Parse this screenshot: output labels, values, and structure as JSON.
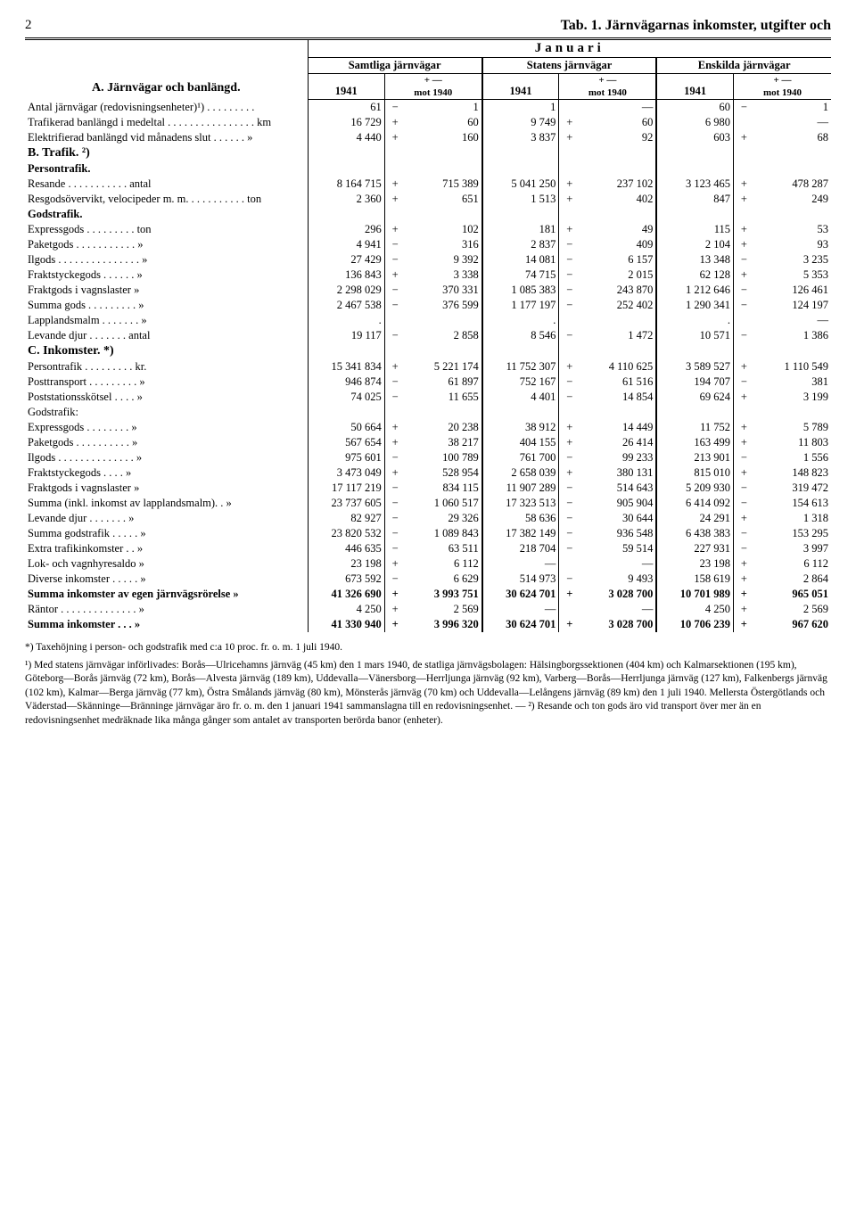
{
  "page_number": "2",
  "page_title": "Tab. 1.  Järnvägarnas inkomster, utgifter och",
  "month": "Januari",
  "col_groups": [
    "Samtliga järnvägar",
    "Statens järnvägar",
    "Enskilda järnvägar"
  ],
  "year": "1941",
  "diff_label_top": "+  —",
  "diff_label_bot": "mot 1940",
  "sectionA_title": "A. Järnvägar och banlängd.",
  "sectionB_title": "B. Trafik. ²)",
  "persontrafik_title": "Persontrafik.",
  "godstrafik_title": "Godstrafik.",
  "sectionC_title": "C. Inkomster. *)",
  "rowsA": [
    {
      "label": "Antal järnvägar (redovisningsenheter)¹) . . . . . . . . .",
      "v": [
        "61",
        "−",
        "1",
        "1",
        "",
        "—",
        "60",
        "−",
        "1"
      ]
    },
    {
      "label": "Trafikerad banlängd i medeltal . . . . . . . . . . . . . . . . km",
      "v": [
        "16 729",
        "+",
        "60",
        "9 749",
        "+",
        "60",
        "6 980",
        "",
        "—"
      ]
    },
    {
      "label": "Elektrifierad banlängd vid månadens slut . . . . . .  »",
      "v": [
        "4 440",
        "+",
        "160",
        "3 837",
        "+",
        "92",
        "603",
        "+",
        "68"
      ]
    }
  ],
  "rowsP": [
    {
      "label": "Resande . . . . . . . . . . . antal",
      "v": [
        "8 164 715",
        "+",
        "715 389",
        "5 041 250",
        "+",
        "237 102",
        "3 123 465",
        "+",
        "478 287"
      ]
    },
    {
      "label": "Resgodsövervikt, velocipeder m. m. . . . . . . . . . . ton",
      "v": [
        "2 360",
        "+",
        "651",
        "1 513",
        "+",
        "402",
        "847",
        "+",
        "249"
      ]
    }
  ],
  "rowsG": [
    {
      "label": "Expressgods . . . . . . . . . ton",
      "v": [
        "296",
        "+",
        "102",
        "181",
        "+",
        "49",
        "115",
        "+",
        "53"
      ]
    },
    {
      "label": "Paketgods . . . . . . . . . . .  »",
      "v": [
        "4 941",
        "−",
        "316",
        "2 837",
        "−",
        "409",
        "2 104",
        "+",
        "93"
      ]
    },
    {
      "label": "Ilgods . . . . . . . . . . . . . . .  »",
      "v": [
        "27 429",
        "−",
        "9 392",
        "14 081",
        "−",
        "6 157",
        "13 348",
        "−",
        "3 235"
      ]
    },
    {
      "label": "Fraktstyckegods . . . . . .  »",
      "v": [
        "136 843",
        "+",
        "3 338",
        "74 715",
        "−",
        "2 015",
        "62 128",
        "+",
        "5 353"
      ]
    },
    {
      "label": "Fraktgods i vagnslaster  »",
      "v": [
        "2 298 029",
        "−",
        "370 331",
        "1 085 383",
        "−",
        "243 870",
        "1 212 646",
        "−",
        "126 461"
      ]
    },
    {
      "label": "Summa gods . . . . . . . . .  »",
      "v": [
        "2 467 538",
        "−",
        "376 599",
        "1 177 197",
        "−",
        "252 402",
        "1 290 341",
        "−",
        "124 197"
      ]
    },
    {
      "label": "Lapplandsmalm . . . . . . .  »",
      "v": [
        ".",
        "",
        "",
        ".",
        "",
        "",
        ".",
        "",
        "—"
      ]
    },
    {
      "label": "Levande djur . . . . . . . antal",
      "v": [
        "19 117",
        "−",
        "2 858",
        "8 546",
        "−",
        "1 472",
        "10 571",
        "−",
        "1 386"
      ]
    }
  ],
  "rowsC": [
    {
      "label": "Persontrafik . . . . . . . . . kr.",
      "v": [
        "15 341 834",
        "+",
        "5 221 174",
        "11 752 307",
        "+",
        "4 110 625",
        "3 589 527",
        "+",
        "1 110 549"
      ]
    },
    {
      "label": "Posttransport . . . . . . . . .  »",
      "v": [
        "946 874",
        "−",
        "61 897",
        "752 167",
        "−",
        "61 516",
        "194 707",
        "−",
        "381"
      ]
    },
    {
      "label": "Poststationsskötsel . . . .  »",
      "v": [
        "74 025",
        "−",
        "11 655",
        "4 401",
        "−",
        "14 854",
        "69 624",
        "+",
        "3 199"
      ]
    },
    {
      "label": "Godstrafik:",
      "v": [
        "",
        "",
        "",
        "",
        "",
        "",
        "",
        "",
        ""
      ]
    },
    {
      "label": "  Expressgods . . . . . . . .  »",
      "v": [
        "50 664",
        "+",
        "20 238",
        "38 912",
        "+",
        "14 449",
        "11 752",
        "+",
        "5 789"
      ]
    },
    {
      "label": "  Paketgods . . . . . . . . . .  »",
      "v": [
        "567 654",
        "+",
        "38 217",
        "404 155",
        "+",
        "26 414",
        "163 499",
        "+",
        "11 803"
      ]
    },
    {
      "label": "  Ilgods . . . . . . . . . . . . . .  »",
      "v": [
        "975 601",
        "−",
        "100 789",
        "761 700",
        "−",
        "99 233",
        "213 901",
        "−",
        "1 556"
      ]
    },
    {
      "label": "  Fraktstyckegods . . . .  »",
      "v": [
        "3 473 049",
        "+",
        "528 954",
        "2 658 039",
        "+",
        "380 131",
        "815 010",
        "+",
        "148 823"
      ]
    },
    {
      "label": "  Fraktgods i vagnslaster  »",
      "v": [
        "17 117 219",
        "−",
        "834 115",
        "11 907 289",
        "−",
        "514 643",
        "5 209 930",
        "−",
        "319 472"
      ]
    },
    {
      "label": "  Summa (inkl. inkomst av lapplandsmalm). .  »",
      "v": [
        "23 737 605",
        "−",
        "1 060 517",
        "17 323 513",
        "−",
        "905 904",
        "6 414 092",
        "−",
        "154 613"
      ]
    },
    {
      "label": "  Levande djur . . . . . . .  »",
      "v": [
        "82 927",
        "−",
        "29 326",
        "58 636",
        "−",
        "30 644",
        "24 291",
        "+",
        "1 318"
      ]
    },
    {
      "label": "Summa godstrafik . . . . .  »",
      "v": [
        "23 820 532",
        "−",
        "1 089 843",
        "17 382 149",
        "−",
        "936 548",
        "6 438 383",
        "−",
        "153 295"
      ]
    },
    {
      "label": "Extra trafikinkomster . .  »",
      "v": [
        "446 635",
        "−",
        "63 511",
        "218 704",
        "−",
        "59 514",
        "227 931",
        "−",
        "3 997"
      ]
    },
    {
      "label": "Lok- och vagnhyresaldo  »",
      "v": [
        "23 198",
        "+",
        "6 112",
        "—",
        "",
        "—",
        "23 198",
        "+",
        "6 112"
      ]
    },
    {
      "label": "Diverse inkomster . . . . .  »",
      "v": [
        "673 592",
        "−",
        "6 629",
        "514 973",
        "−",
        "9 493",
        "158 619",
        "+",
        "2 864"
      ]
    }
  ],
  "summaRows": [
    {
      "label": "Summa inkomster av egen järnvägsrörelse  »",
      "v": [
        "41 326 690",
        "+",
        "3 993 751",
        "30 624 701",
        "+",
        "3 028 700",
        "10 701 989",
        "+",
        "965 051"
      ],
      "bold": true
    },
    {
      "label": "Räntor . . . . . . . . . . . . . .  »",
      "v": [
        "4 250",
        "+",
        "2 569",
        "—",
        "",
        "—",
        "4 250",
        "+",
        "2 569"
      ],
      "bold": false
    },
    {
      "label": "Summa inkomster . . .   »",
      "v": [
        "41 330 940",
        "+",
        "3 996 320",
        "30 624 701",
        "+",
        "3 028 700",
        "10 706 239",
        "+",
        "967 620"
      ],
      "bold": true
    }
  ],
  "footnote_star": "*) Taxehöjning i person- och godstrafik med c:a 10 proc. fr. o. m. 1 juli 1940.",
  "footnote_body": "¹) Med statens järnvägar införlivades: Borås—Ulricehamns järnväg (45 km) den 1 mars 1940, de statliga järnvägsbolagen: Hälsingborgssektionen (404 km) och Kalmarsektionen (195 km), Göteborg—Borås järnväg (72 km), Borås—Alvesta järnväg (189 km), Uddevalla—Vänersborg—Herrljunga järnväg (92 km), Varberg—Borås—Herrljunga järnväg (127 km), Falkenbergs järnväg (102 km), Kalmar—Berga järnväg (77 km), Östra Smålands järnväg (80 km), Mönsterås järnväg (70 km) och Uddevalla—Lelångens järnväg (89 km) den 1 juli 1940. Mellersta Östergötlands och Väderstad—Skänninge—Bränninge järnvägar äro fr. o. m. den 1 januari 1941 sammanslagna till en redovisningsenhet. — ²) Resande och ton gods äro vid transport över mer än en redovisningsenhet medräknade lika många gånger som antalet av transporten berörda banor (enheter)."
}
